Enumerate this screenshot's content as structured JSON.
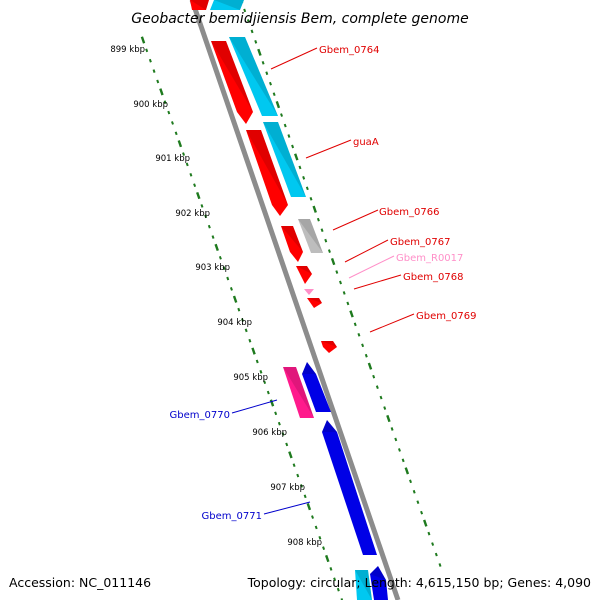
{
  "title": "Geobacter bemidjiensis Bem, complete genome",
  "footer": {
    "accession": "Accession: NC_011146",
    "summary": "Topology: circular; Length: 4,615,150 bp; Genes: 4,090"
  },
  "colors": {
    "backbone": "#8c8c8c",
    "tick": "#1e7a1e",
    "red_gene": "#ff0000",
    "cyan_gene": "#00c8f0",
    "blue_gene": "#0000e6",
    "magenta_gene": "#ff1a8c",
    "gray_gene": "#bdbdbd",
    "pink_gene": "#ff8fc8"
  },
  "kbp_labels": [
    "899 kbp",
    "900 kbp",
    "901 kbp",
    "902 kbp",
    "903 kbp",
    "904 kbp",
    "905 kbp",
    "906 kbp",
    "907 kbp",
    "908 kbp"
  ],
  "gene_labels": [
    {
      "text": "Gbem_0764",
      "color": "#e00000"
    },
    {
      "text": "guaA",
      "color": "#e00000"
    },
    {
      "text": "Gbem_0766",
      "color": "#e00000"
    },
    {
      "text": "Gbem_0767",
      "color": "#e00000"
    },
    {
      "text": "Gbem_R0017",
      "color": "#ff8fc8"
    },
    {
      "text": "Gbem_0768",
      "color": "#e00000"
    },
    {
      "text": "Gbem_0769",
      "color": "#e00000"
    },
    {
      "text": "Gbem_0770",
      "color": "#0000cc"
    },
    {
      "text": "Gbem_0771",
      "color": "#0000cc"
    }
  ]
}
